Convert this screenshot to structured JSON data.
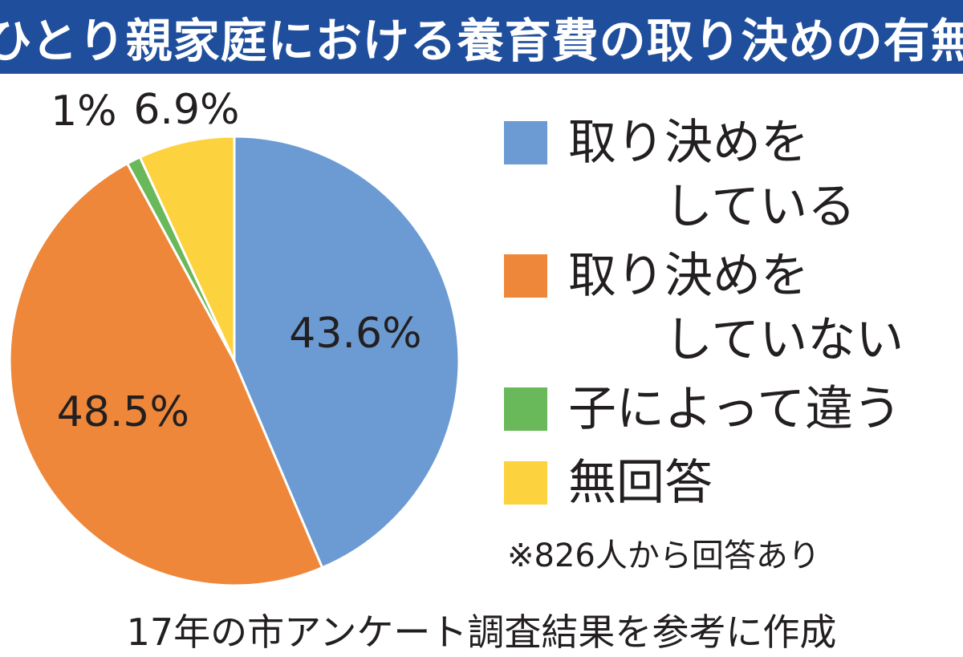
{
  "title": "ひとり親家庭における養育費の取り決めの有無",
  "chart_data": {
    "type": "pie",
    "title": "ひとり親家庭における養育費の取り決めの有無",
    "slices": [
      {
        "label": "取り決めをしている",
        "legend_lines": [
          "取り決めを",
          "　　している"
        ],
        "value": 43.6,
        "display": "43.6%",
        "color": "#6b9bd2"
      },
      {
        "label": "取り決めをしていない",
        "legend_lines": [
          "取り決めを",
          "　　していない"
        ],
        "value": 48.5,
        "display": "48.5%",
        "color": "#ee8739"
      },
      {
        "label": "子によって違う",
        "legend_lines": [
          "子によって違う"
        ],
        "value": 1,
        "display": "1%",
        "color": "#69b85a"
      },
      {
        "label": "無回答",
        "legend_lines": [
          "無回答"
        ],
        "value": 6.9,
        "display": "6.9%",
        "color": "#fdd23f"
      }
    ],
    "start": "12 o'clock",
    "direction": "clockwise"
  },
  "note": "※826人から回答あり",
  "source": "17年の市アンケート調査結果を参考に作成"
}
